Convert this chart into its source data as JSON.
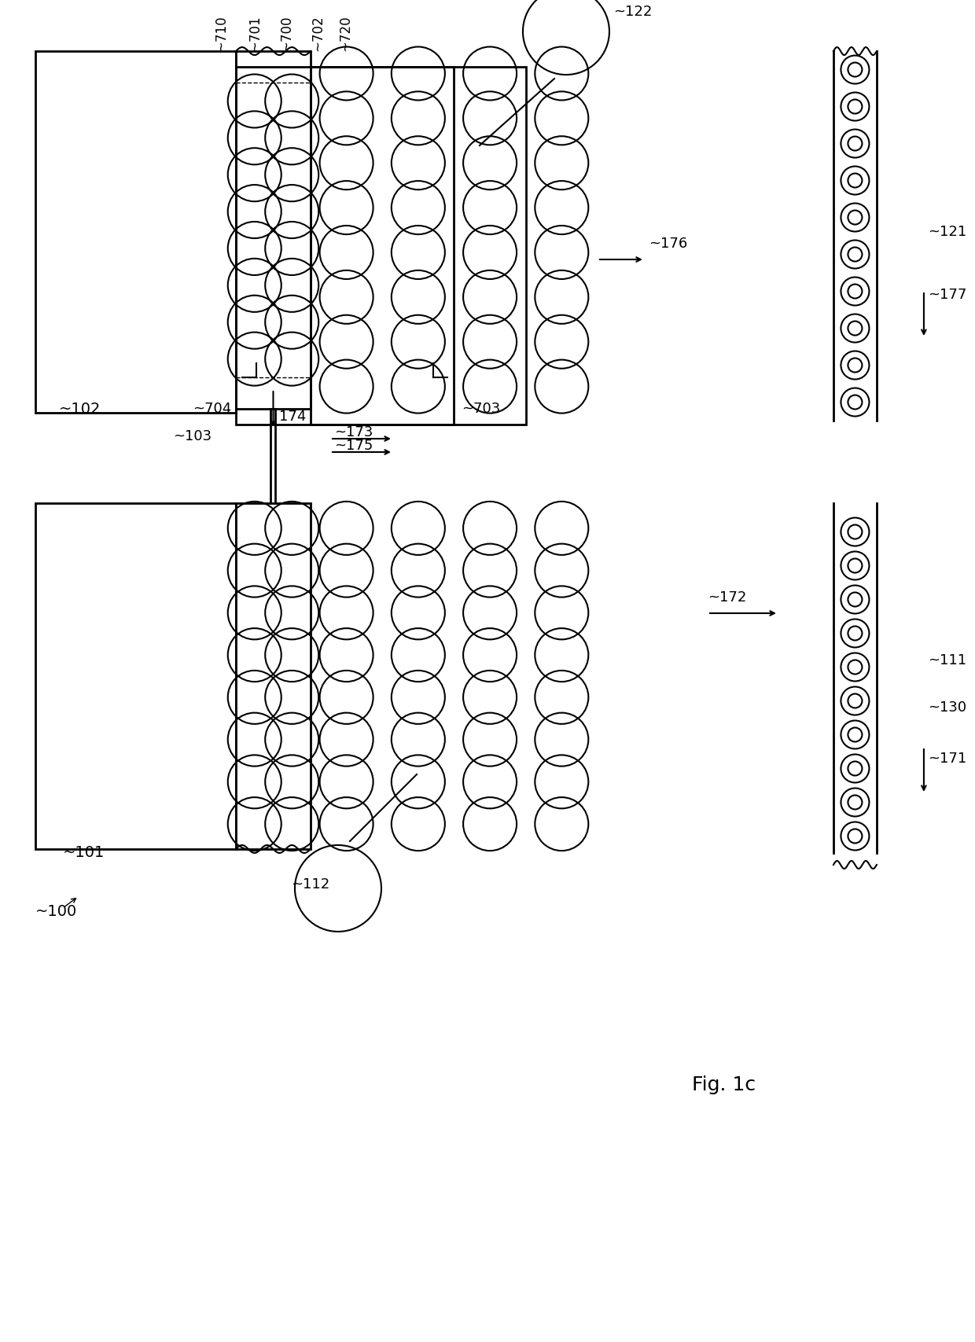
{
  "bg_color": "#ffffff",
  "line_color": "#000000",
  "fig_width": 12.4,
  "fig_height": 17.07,
  "lw_thick": 2.0,
  "lw_med": 1.5,
  "lw_thin": 1.0
}
